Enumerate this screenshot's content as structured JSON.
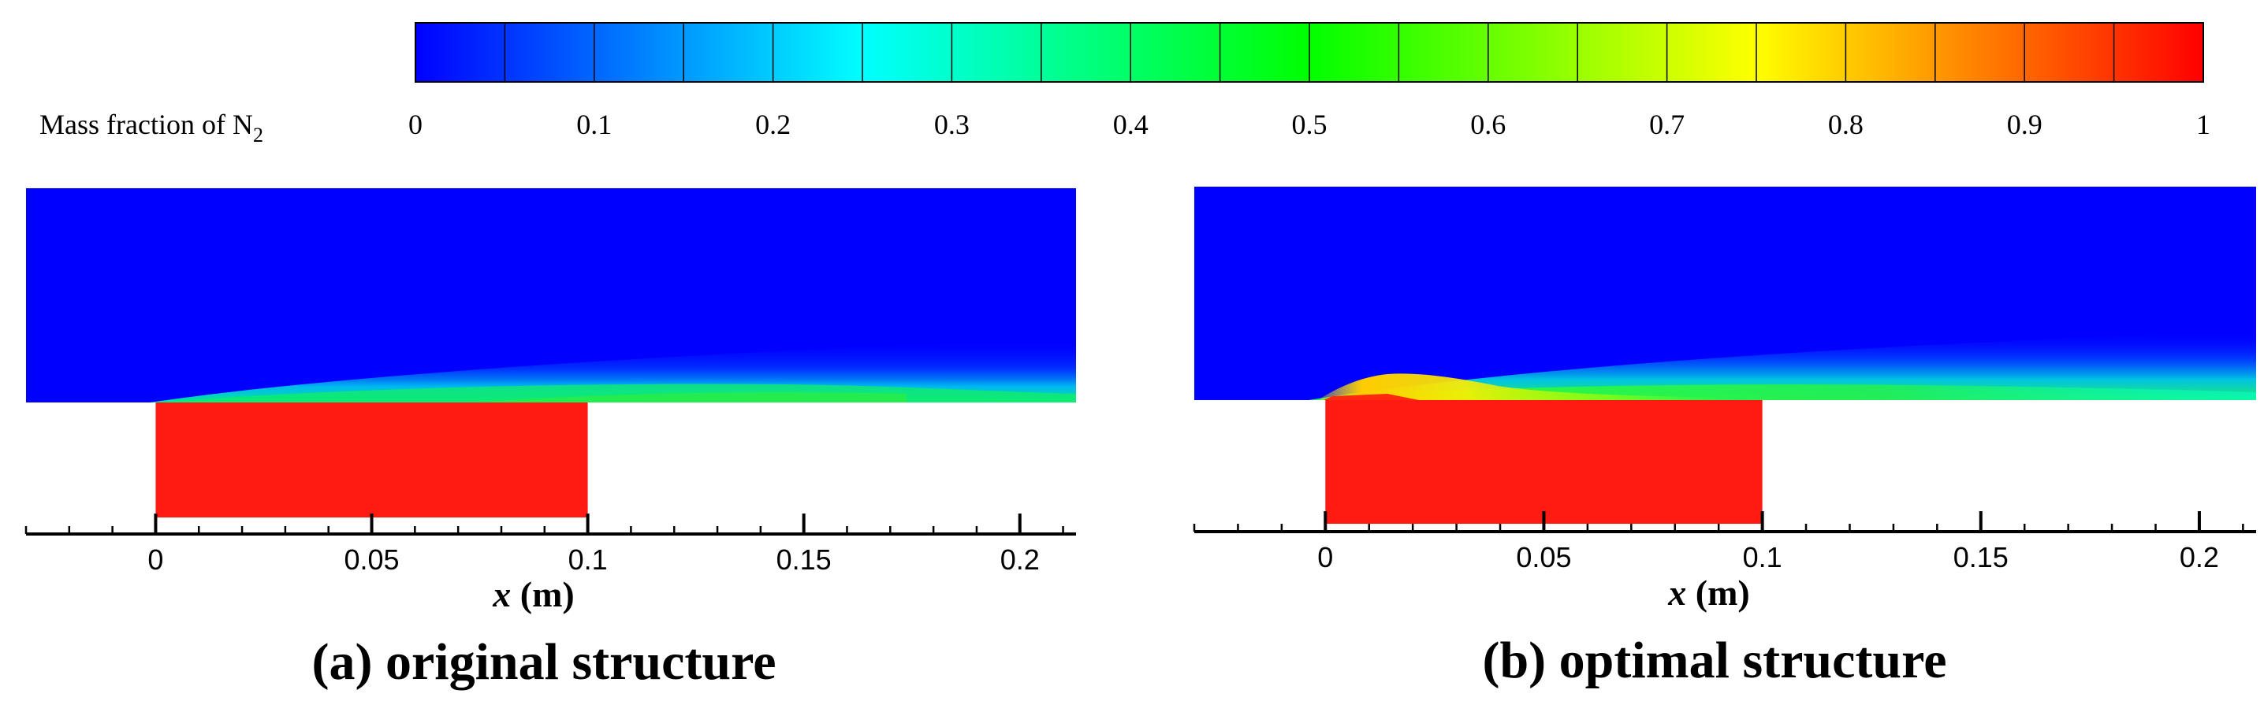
{
  "colorbar": {
    "label_main": "Mass fraction of N",
    "label_sub": "2",
    "ticks": [
      "0",
      "0.1",
      "0.2",
      "0.3",
      "0.4",
      "0.5",
      "0.6",
      "0.7",
      "0.8",
      "0.9",
      "1"
    ],
    "levels": 20,
    "colors": [
      "#0000ff",
      "#00ffff",
      "#00ff00",
      "#ffff00",
      "#ff0000"
    ]
  },
  "chart_data": [
    {
      "type": "heatmap",
      "title": "(a) original structure",
      "xlabel_var": "x",
      "xlabel_unit": " (m)",
      "xlim": [
        -0.03,
        0.213
      ],
      "x_ticks": [
        0,
        0.05,
        0.1,
        0.15,
        0.2
      ],
      "x_tick_labels": [
        "0",
        "0.05",
        "0.1",
        "0.15",
        "0.2"
      ],
      "field": "Mass fraction of N2",
      "inlet_region": {
        "x_start": 0,
        "x_end": 0.1,
        "value": 1
      },
      "freestream_value": 0,
      "mixing_layer": {
        "x_start": 0,
        "x_end": 0.213,
        "peak_value": 0.5
      }
    },
    {
      "type": "heatmap",
      "title": "(b) optimal structure",
      "xlabel_var": "x",
      "xlabel_unit": " (m)",
      "xlim": [
        -0.03,
        0.213
      ],
      "x_ticks": [
        0,
        0.05,
        0.1,
        0.15,
        0.2
      ],
      "x_tick_labels": [
        "0",
        "0.05",
        "0.1",
        "0.15",
        "0.2"
      ],
      "field": "Mass fraction of N2",
      "inlet_region": {
        "x_start": 0,
        "x_end": 0.1,
        "value": 1
      },
      "freestream_value": 0,
      "mixing_layer": {
        "x_start": 0,
        "x_end": 0.213,
        "peak_value": 0.85
      }
    }
  ]
}
